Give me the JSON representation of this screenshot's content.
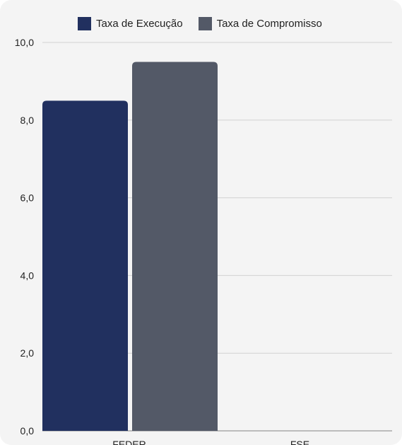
{
  "chart_data": {
    "type": "bar",
    "categories": [
      "FEDER",
      "FSE"
    ],
    "series": [
      {
        "name": "Taxa de Execução",
        "values": [
          8.5,
          null
        ],
        "color": "#21305f"
      },
      {
        "name": "Taxa de Compromisso",
        "values": [
          9.5,
          null
        ],
        "color": "#535967"
      }
    ],
    "yticks": [
      "0,0",
      "2,0",
      "4,0",
      "6,0",
      "8,0",
      "10,0"
    ],
    "ylim": [
      0,
      10
    ],
    "grid": true,
    "legend_position": "top"
  }
}
